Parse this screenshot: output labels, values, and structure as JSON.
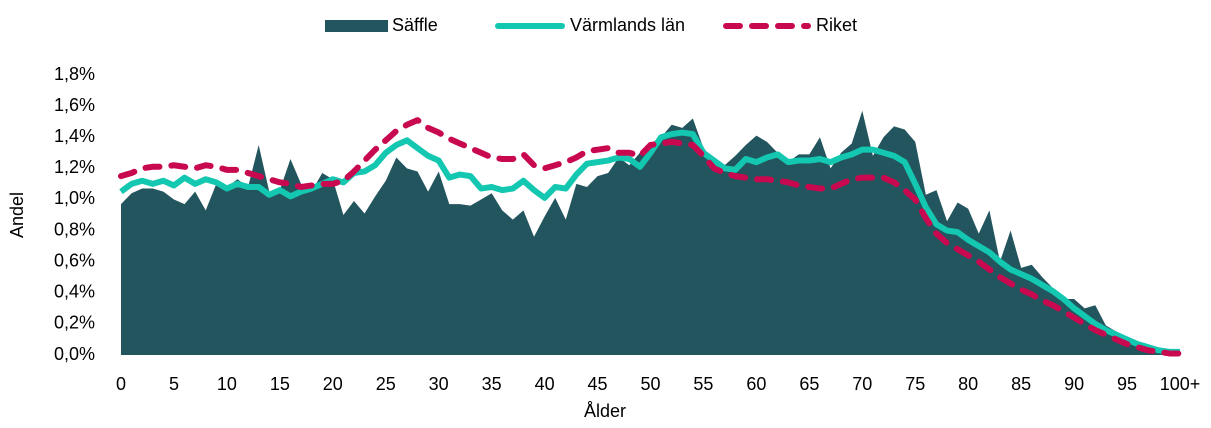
{
  "chart_data": {
    "type": "area-line",
    "x_label": "Ålder",
    "y_label": "Andel",
    "categories": [
      "0",
      null,
      null,
      null,
      null,
      "5",
      null,
      null,
      null,
      null,
      "10",
      null,
      null,
      null,
      null,
      "15",
      null,
      null,
      null,
      null,
      "20",
      null,
      null,
      null,
      null,
      "25",
      null,
      null,
      null,
      null,
      "30",
      null,
      null,
      null,
      null,
      "35",
      null,
      null,
      null,
      null,
      "40",
      null,
      null,
      null,
      null,
      "45",
      null,
      null,
      null,
      null,
      "50",
      null,
      null,
      null,
      null,
      "55",
      null,
      null,
      null,
      null,
      "60",
      null,
      null,
      null,
      null,
      "65",
      null,
      null,
      null,
      null,
      "70",
      null,
      null,
      null,
      null,
      "75",
      null,
      null,
      null,
      null,
      "80",
      null,
      null,
      null,
      null,
      "85",
      null,
      null,
      null,
      null,
      "90",
      null,
      null,
      null,
      null,
      "95",
      null,
      null,
      null,
      null,
      "100+"
    ],
    "ylim": [
      0,
      1.8
    ],
    "yticks": [
      {
        "value": 0,
        "label": "0,0%"
      },
      {
        "value": 0.2,
        "label": "0,2%"
      },
      {
        "value": 0.4,
        "label": "0,4%"
      },
      {
        "value": 0.6,
        "label": "0,6%"
      },
      {
        "value": 0.8,
        "label": "0,8%"
      },
      {
        "value": 1.0,
        "label": "1,0%"
      },
      {
        "value": 1.2,
        "label": "1,2%"
      },
      {
        "value": 1.4,
        "label": "1,4%"
      },
      {
        "value": 1.6,
        "label": "1,6%"
      },
      {
        "value": 1.8,
        "label": "1,8%"
      }
    ],
    "legend": "top",
    "series": [
      {
        "name": "Säffle",
        "style": "area",
        "color": "#22555e",
        "values": [
          0.97,
          1.04,
          1.07,
          1.07,
          1.05,
          1.0,
          0.97,
          1.05,
          0.93,
          1.1,
          1.08,
          1.13,
          1.08,
          1.35,
          1.05,
          1.06,
          1.26,
          1.1,
          1.05,
          1.17,
          1.13,
          0.9,
          0.99,
          0.91,
          1.02,
          1.12,
          1.27,
          1.2,
          1.18,
          1.05,
          1.18,
          0.97,
          0.97,
          0.96,
          1.0,
          1.04,
          0.93,
          0.87,
          0.93,
          0.76,
          0.89,
          1.01,
          0.87,
          1.1,
          1.08,
          1.15,
          1.17,
          1.27,
          1.22,
          1.3,
          1.36,
          1.4,
          1.48,
          1.46,
          1.52,
          1.33,
          1.25,
          1.22,
          1.28,
          1.35,
          1.41,
          1.37,
          1.3,
          1.24,
          1.29,
          1.29,
          1.4,
          1.2,
          1.3,
          1.36,
          1.57,
          1.28,
          1.4,
          1.47,
          1.45,
          1.37,
          1.03,
          1.06,
          0.86,
          0.98,
          0.94,
          0.78,
          0.93,
          0.6,
          0.8,
          0.56,
          0.58,
          0.5,
          0.43,
          0.36,
          0.36,
          0.3,
          0.32,
          0.19,
          0.15,
          0.1,
          0.07,
          0.05,
          0.03,
          0.02,
          0.03
        ]
      },
      {
        "name": "Värmlands län",
        "style": "line",
        "color": "#14c7b0",
        "values": [
          1.05,
          1.1,
          1.12,
          1.1,
          1.12,
          1.09,
          1.14,
          1.1,
          1.13,
          1.11,
          1.07,
          1.1,
          1.08,
          1.08,
          1.03,
          1.06,
          1.02,
          1.05,
          1.07,
          1.1,
          1.13,
          1.11,
          1.17,
          1.18,
          1.22,
          1.3,
          1.35,
          1.38,
          1.33,
          1.28,
          1.25,
          1.14,
          1.16,
          1.15,
          1.07,
          1.08,
          1.06,
          1.07,
          1.12,
          1.06,
          1.01,
          1.08,
          1.07,
          1.16,
          1.23,
          1.24,
          1.25,
          1.27,
          1.26,
          1.21,
          1.3,
          1.4,
          1.42,
          1.43,
          1.42,
          1.3,
          1.25,
          1.2,
          1.19,
          1.26,
          1.24,
          1.27,
          1.29,
          1.24,
          1.25,
          1.25,
          1.26,
          1.24,
          1.27,
          1.29,
          1.32,
          1.32,
          1.3,
          1.28,
          1.24,
          1.1,
          0.95,
          0.84,
          0.8,
          0.79,
          0.74,
          0.7,
          0.66,
          0.6,
          0.55,
          0.52,
          0.49,
          0.45,
          0.41,
          0.36,
          0.3,
          0.25,
          0.2,
          0.16,
          0.13,
          0.1,
          0.07,
          0.05,
          0.03,
          0.02,
          0.02
        ]
      },
      {
        "name": "Riket",
        "style": "dashed",
        "color": "#c8094f",
        "values": [
          1.15,
          1.17,
          1.2,
          1.21,
          1.21,
          1.22,
          1.21,
          1.2,
          1.22,
          1.21,
          1.19,
          1.19,
          1.17,
          1.15,
          1.13,
          1.11,
          1.1,
          1.08,
          1.09,
          1.1,
          1.1,
          1.12,
          1.18,
          1.25,
          1.32,
          1.38,
          1.44,
          1.48,
          1.51,
          1.46,
          1.43,
          1.39,
          1.36,
          1.33,
          1.3,
          1.27,
          1.26,
          1.26,
          1.29,
          1.22,
          1.2,
          1.22,
          1.24,
          1.27,
          1.31,
          1.32,
          1.33,
          1.3,
          1.3,
          1.28,
          1.35,
          1.36,
          1.37,
          1.36,
          1.35,
          1.28,
          1.2,
          1.17,
          1.15,
          1.14,
          1.13,
          1.13,
          1.12,
          1.11,
          1.09,
          1.08,
          1.07,
          1.07,
          1.1,
          1.13,
          1.14,
          1.14,
          1.14,
          1.11,
          1.06,
          1.0,
          0.88,
          0.78,
          0.72,
          0.68,
          0.64,
          0.6,
          0.55,
          0.5,
          0.46,
          0.42,
          0.39,
          0.35,
          0.32,
          0.28,
          0.24,
          0.2,
          0.16,
          0.13,
          0.1,
          0.07,
          0.05,
          0.03,
          0.02,
          0.01,
          0.01
        ]
      }
    ]
  }
}
